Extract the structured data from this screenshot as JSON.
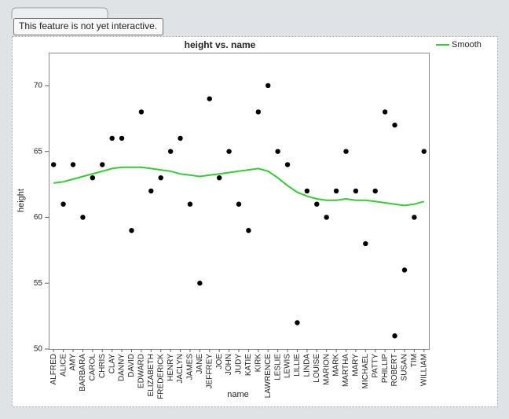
{
  "ui": {
    "tooltip": "This feature is not yet interactive."
  },
  "chart_data": {
    "type": "scatter",
    "title": "height vs. name",
    "x_label": "name",
    "y_label": "height",
    "categories": [
      "ALFRED",
      "ALICE",
      "AMY",
      "BARBARA",
      "CAROL",
      "CHRIS",
      "CLAY",
      "DANNY",
      "DAVID",
      "EDWARD",
      "ELIZABETH",
      "FREDERICK",
      "HENRY",
      "JACLYN",
      "JAMES",
      "JANE",
      "JEFFREY",
      "JOE",
      "JOHN",
      "JUDY",
      "KATIE",
      "KIRK",
      "LAWRENCE",
      "LESLIE",
      "LEWIS",
      "LILLIE",
      "LINDA",
      "LOUISE",
      "MARION",
      "MARK",
      "MARTHA",
      "MARY",
      "MICHAEL",
      "PATTY",
      "PHILLIP",
      "ROBERT",
      "SUSAN",
      "TIM",
      "WILLIAM"
    ],
    "points": {
      "color": "#000000",
      "x": [
        "ALFRED",
        "ALICE",
        "AMY",
        "BARBARA",
        "CAROL",
        "CHRIS",
        "CLAY",
        "DANNY",
        "DAVID",
        "EDWARD",
        "ELIZABETH",
        "FREDERICK",
        "HENRY",
        "JACLYN",
        "JAMES",
        "JANE",
        "JEFFREY",
        "JOE",
        "JOHN",
        "JUDY",
        "KATIE",
        "KIRK",
        "LAWRENCE",
        "LESLIE",
        "LEWIS",
        "LILLIE",
        "LINDA",
        "LOUISE",
        "MARION",
        "MARK",
        "MARTHA",
        "MARY",
        "MICHAEL",
        "PATTY",
        "PHILLIP",
        "ROBERT",
        "ROBERT",
        "SUSAN",
        "TIM",
        "WILLIAM"
      ],
      "y": [
        64,
        61,
        64,
        60,
        63,
        64,
        66,
        66,
        59,
        68,
        62,
        63,
        65,
        66,
        61,
        55,
        69,
        63,
        65,
        61,
        59,
        68,
        70,
        65,
        64,
        52,
        62,
        61,
        60,
        62,
        65,
        62,
        58,
        62,
        68,
        67,
        51,
        56,
        60,
        65
      ]
    },
    "series": [
      {
        "name": "Smooth",
        "color": "#33cc33",
        "values": [
          62.6,
          62.7,
          62.9,
          63.1,
          63.3,
          63.5,
          63.7,
          63.8,
          63.8,
          63.8,
          63.7,
          63.6,
          63.5,
          63.3,
          63.2,
          63.1,
          63.2,
          63.3,
          63.4,
          63.5,
          63.6,
          63.7,
          63.5,
          63.0,
          62.4,
          61.9,
          61.6,
          61.4,
          61.3,
          61.3,
          61.4,
          61.3,
          61.3,
          61.2,
          61.1,
          61.0,
          60.9,
          61.0,
          61.2
        ]
      }
    ],
    "ylim": [
      50,
      72.5
    ],
    "yticks": [
      50,
      55,
      60,
      65,
      70
    ],
    "legend": "top-right"
  }
}
